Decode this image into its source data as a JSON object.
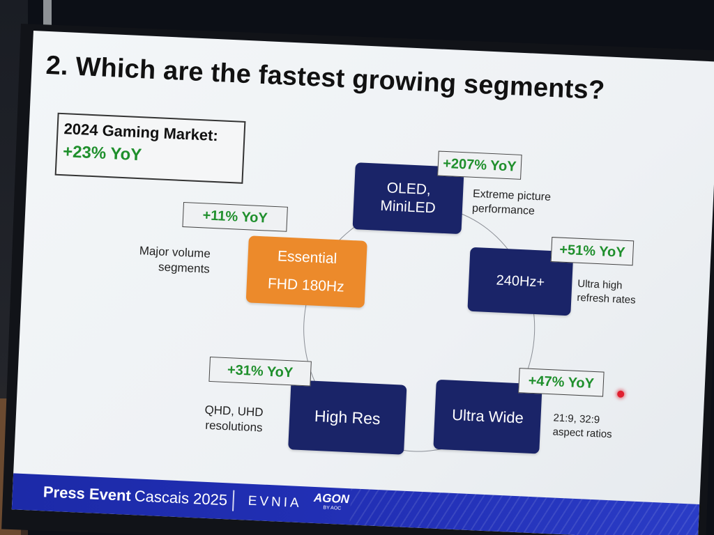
{
  "slide": {
    "title": "2. Which are the fastest growing segments?",
    "market": {
      "label": "2024 Gaming Market:",
      "value": "+23% YoY"
    },
    "segments": {
      "oled": {
        "lines": [
          "OLED,",
          "MiniLED"
        ],
        "yoy": "+207% YoY",
        "desc": [
          "Extreme picture",
          "performance"
        ]
      },
      "hz": {
        "lines": [
          "240Hz+"
        ],
        "yoy": "+51% YoY",
        "desc": [
          "Ultra high",
          "refresh rates"
        ]
      },
      "essential": {
        "lines": [
          "Essential",
          "FHD 180Hz"
        ],
        "yoy": "+11% YoY",
        "desc": [
          "Major volume",
          "segments"
        ]
      },
      "highres": {
        "lines": [
          "High Res"
        ],
        "yoy": "+31% YoY",
        "desc": [
          "QHD, UHD",
          "resolutions"
        ]
      },
      "ultrawide": {
        "lines": [
          "Ultra Wide"
        ],
        "yoy": "+47% YoY",
        "desc": [
          "21:9, 32:9",
          "aspect ratios"
        ]
      }
    },
    "footer": {
      "press": "Press Event",
      "place": "Cascais 2025",
      "evnia": "EVNIA",
      "agon": "AGON",
      "by_aoc": "BY AOC"
    }
  },
  "colors": {
    "segment_dark": "#1a2468",
    "segment_orange": "#ec8a2b",
    "yoy_green": "#1f8f2c",
    "footer_blue": "#1c2aa8"
  }
}
